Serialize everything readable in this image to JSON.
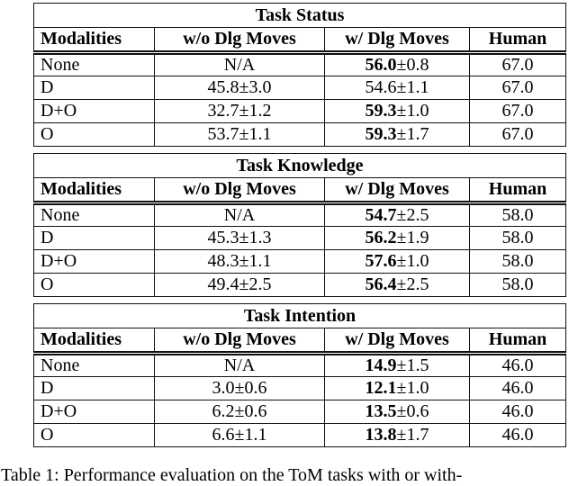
{
  "colors": {
    "background": "#ffffff",
    "text": "#000000",
    "border": "#111111"
  },
  "columns": [
    "Modalities",
    "w/o Dlg Moves",
    "w/ Dlg Moves",
    "Human"
  ],
  "tables": [
    {
      "title": "Task Status",
      "rows": [
        {
          "modality": "None",
          "without": "N/A",
          "with_value": "56.0",
          "with_pm": "±0.8",
          "with_bold": true,
          "human": "67.0"
        },
        {
          "modality": "D",
          "without": "45.8±3.0",
          "with_value": "54.6",
          "with_pm": "±1.1",
          "with_bold": false,
          "human": "67.0"
        },
        {
          "modality": "D+O",
          "without": "32.7±1.2",
          "with_value": "59.3",
          "with_pm": "±1.0",
          "with_bold": true,
          "human": "67.0"
        },
        {
          "modality": "O",
          "without": "53.7±1.1",
          "with_value": "59.3",
          "with_pm": "±1.7",
          "with_bold": true,
          "human": "67.0"
        }
      ]
    },
    {
      "title": "Task Knowledge",
      "rows": [
        {
          "modality": "None",
          "without": "N/A",
          "with_value": "54.7",
          "with_pm": "±2.5",
          "with_bold": true,
          "human": "58.0"
        },
        {
          "modality": "D",
          "without": "45.3±1.3",
          "with_value": "56.2",
          "with_pm": "±1.9",
          "with_bold": true,
          "human": "58.0"
        },
        {
          "modality": "D+O",
          "without": "48.3±1.1",
          "with_value": "57.6",
          "with_pm": "±1.0",
          "with_bold": true,
          "human": "58.0"
        },
        {
          "modality": "O",
          "without": "49.4±2.5",
          "with_value": "56.4",
          "with_pm": "±2.5",
          "with_bold": true,
          "human": "58.0"
        }
      ]
    },
    {
      "title": "Task Intention",
      "rows": [
        {
          "modality": "None",
          "without": "N/A",
          "with_value": "14.9",
          "with_pm": "±1.5",
          "with_bold": true,
          "human": "46.0"
        },
        {
          "modality": "D",
          "without": "3.0±0.6",
          "with_value": "12.1",
          "with_pm": "±1.0",
          "with_bold": true,
          "human": "46.0"
        },
        {
          "modality": "D+O",
          "without": "6.2±0.6",
          "with_value": "13.5",
          "with_pm": "±0.6",
          "with_bold": true,
          "human": "46.0"
        },
        {
          "modality": "O",
          "without": "6.6±1.1",
          "with_value": "13.8",
          "with_pm": "±1.7",
          "with_bold": true,
          "human": "46.0"
        }
      ]
    }
  ],
  "caption": {
    "text": "Table 1: Performance evaluation on the ToM tasks with or with-"
  }
}
